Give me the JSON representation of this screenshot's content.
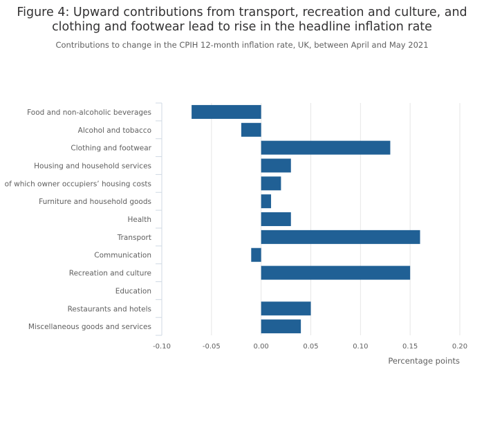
{
  "header": {
    "title_line1": "Figure 4: Upward contributions from transport, recreation and culture, and",
    "title_line2": "clothing and footwear lead to rise in the headline inflation rate",
    "subtitle": "Contributions to change in the CPIH 12-month inflation rate, UK, between April and May 2021"
  },
  "chart_data": {
    "type": "bar",
    "orientation": "horizontal",
    "categories": [
      "Food and non-alcoholic beverages",
      "Alcohol and tobacco",
      "Clothing and footwear",
      "Housing and household services",
      "of which owner occupiers’ housing costs",
      "Furniture and household goods",
      "Health",
      "Transport",
      "Communication",
      "Recreation and culture",
      "Education",
      "Restaurants and hotels",
      "Miscellaneous goods and services"
    ],
    "values": [
      -0.07,
      -0.02,
      0.13,
      0.03,
      0.02,
      0.01,
      0.03,
      0.16,
      -0.01,
      0.15,
      0,
      0.05,
      0.04
    ],
    "xlabel": "Percentage points",
    "xlim": [
      -0.1,
      0.2
    ],
    "xticks": [
      -0.1,
      -0.05,
      0.0,
      0.05,
      0.1,
      0.15,
      0.2
    ],
    "xtick_labels": [
      "-0.10",
      "-0.05",
      "0.00",
      "0.05",
      "0.10",
      "0.15",
      "0.20"
    ],
    "grid": true,
    "legend": "none",
    "bar_color": "#206095"
  }
}
